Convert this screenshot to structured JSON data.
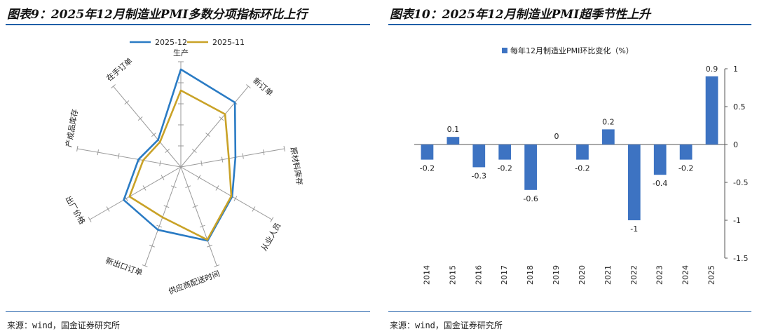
{
  "left": {
    "title": "图表9：2025年12月制造业PMI多数分项指标环比上行",
    "source": "来源：wind，国金证券研究所"
  },
  "right": {
    "title": "图表10：2025年12月制造业PMI超季节性上升",
    "source": "来源：wind，国金证券研究所"
  },
  "colors": {
    "rule": "#1f5fa8",
    "series_dec": "#2a7bc4",
    "series_nov": "#c9a227",
    "bar": "#3d73c2"
  },
  "chart_data": [
    {
      "type": "radar",
      "categories": [
        "生产",
        "新订单",
        "原材料库存",
        "从业人员",
        "供应商配送时间",
        "新出口订单",
        "出厂价格",
        "产成品库存",
        "在手订单"
      ],
      "series": [
        {
          "name": "2025-12",
          "values": [
            52.2,
            50.8,
            47.8,
            48.2,
            50.2,
            49.0,
            48.9,
            46.5,
            45.7
          ]
        },
        {
          "name": "2025-11",
          "values": [
            50.0,
            49.2,
            47.1,
            48.1,
            50.1,
            47.6,
            48.2,
            46.0,
            45.4
          ]
        }
      ],
      "legend": "top",
      "range": [
        42,
        53
      ]
    },
    {
      "type": "bar",
      "series_name": "每年12月制造业PMI环比变化（%）",
      "categories": [
        "2014",
        "2015",
        "2016",
        "2017",
        "2018",
        "2019",
        "2020",
        "2021",
        "2022",
        "2023",
        "2024",
        "2025"
      ],
      "values": [
        -0.2,
        0.1,
        -0.3,
        -0.2,
        -0.6,
        0,
        -0.2,
        0.2,
        -1,
        -0.4,
        -0.2,
        0.9
      ],
      "data_labels": [
        "-0.2",
        "0.1",
        "-0.3",
        "-0.2",
        "-0.6",
        "0",
        "-0.2",
        "0.2",
        "-1",
        "-0.4",
        "-0.2",
        "0.9"
      ],
      "ylim": [
        -1.5,
        1
      ],
      "yticks": [
        1,
        0.5,
        0,
        -0.5,
        -1,
        -1.5
      ],
      "ytick_labels": [
        "1",
        "0.5",
        "0",
        "-0.5",
        "-1",
        "-1.5"
      ],
      "yaxis_position": "right",
      "legend": "top"
    }
  ]
}
